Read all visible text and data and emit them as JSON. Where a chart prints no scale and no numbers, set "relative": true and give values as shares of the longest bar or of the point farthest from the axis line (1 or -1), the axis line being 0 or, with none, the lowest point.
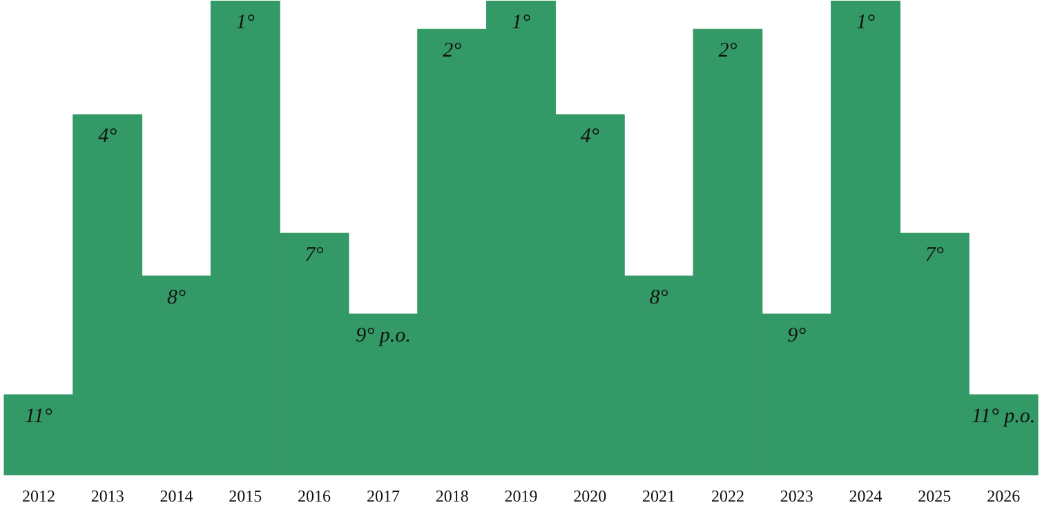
{
  "chart_data": {
    "type": "bar",
    "relative": true,
    "color": "#339966",
    "categories": [
      "2012",
      "2013",
      "2014",
      "2015",
      "2016",
      "2017",
      "2018",
      "2019",
      "2020",
      "2021",
      "2022",
      "2023",
      "2024",
      "2025",
      "2026"
    ],
    "values": [
      0.17,
      0.76,
      0.42,
      1,
      0.51,
      0.34,
      0.94,
      1,
      0.76,
      0.42,
      0.94,
      0.34,
      1,
      0.51,
      0.17
    ],
    "annotations": [
      {
        "text": "11°",
        "x": "2012",
        "y": 0.17
      },
      {
        "text": "4°",
        "x": "2013",
        "y": 0.76
      },
      {
        "text": "8°",
        "x": "2014",
        "y": 0.42
      },
      {
        "text": "1°",
        "x": "2015",
        "y": 1
      },
      {
        "text": "7°",
        "x": "2016",
        "y": 0.51
      },
      {
        "text": "9° p.o.",
        "x": "2017",
        "y": 0.34
      },
      {
        "text": "2°",
        "x": "2018",
        "y": 0.94
      },
      {
        "text": "1°",
        "x": "2019",
        "y": 1
      },
      {
        "text": "4°",
        "x": "2020",
        "y": 0.76
      },
      {
        "text": "8°",
        "x": "2021",
        "y": 0.42
      },
      {
        "text": "2°",
        "x": "2022",
        "y": 0.94
      },
      {
        "text": "9°",
        "x": "2023",
        "y": 0.34
      },
      {
        "text": "1°",
        "x": "2024",
        "y": 1
      },
      {
        "text": "7°",
        "x": "2025",
        "y": 0.51
      },
      {
        "text": "11° p.o.",
        "x": "2026",
        "y": 0.17
      }
    ]
  }
}
